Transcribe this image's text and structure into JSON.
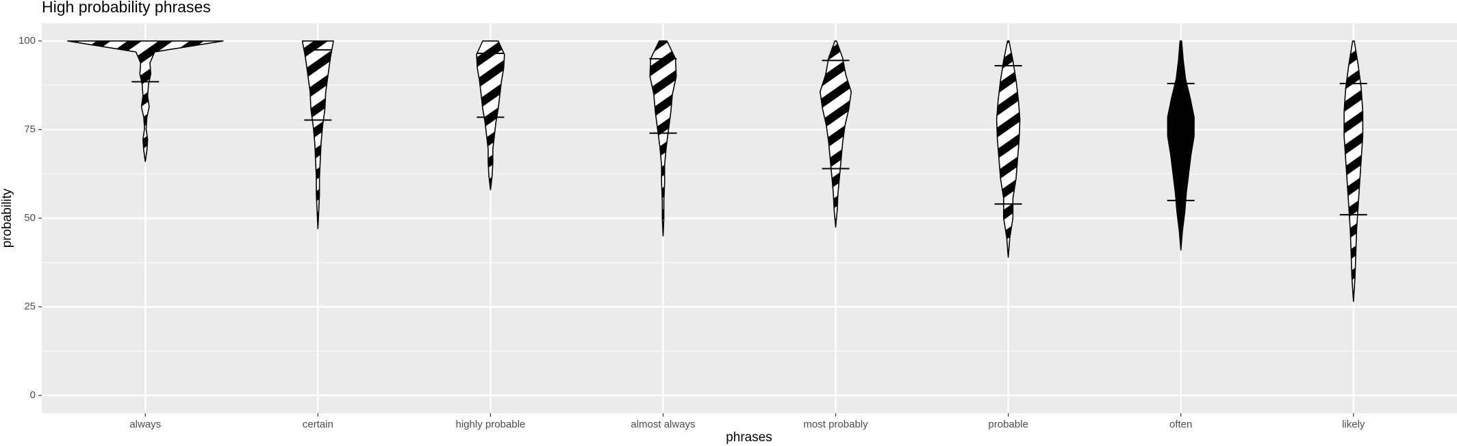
{
  "chart_data": {
    "type": "violin",
    "title": "High probability phrases",
    "xlabel": "phrases",
    "ylabel": "probability",
    "categories": [
      "always",
      "certain",
      "highly probable",
      "almost always",
      "most probably",
      "probable",
      "often",
      "likely"
    ],
    "ylim": [
      -5,
      105
    ],
    "yticks": [
      0,
      25,
      50,
      75,
      100
    ],
    "grid": true,
    "line_color": "#000000",
    "violins": [
      {
        "min": 66,
        "max": 100,
        "quantiles": [
          88.5
        ],
        "fill": "stripes",
        "widths": [
          0,
          0.02,
          0.03,
          0.01,
          0.02,
          0.05,
          0.03,
          0.04,
          0.07,
          0.06,
          0.12,
          1.0
        ]
      },
      {
        "min": 47,
        "max": 100,
        "quantiles": [
          77.7,
          97.5
        ],
        "fill": "stripes",
        "widths": [
          0,
          0.01,
          0.02,
          0.02,
          0.03,
          0.04,
          0.06,
          0.09,
          0.1,
          0.13,
          0.16,
          0.2
        ]
      },
      {
        "min": 58,
        "max": 100,
        "quantiles": [
          78.5,
          96.5
        ],
        "fill": "stripes",
        "widths": [
          0,
          0.02,
          0.03,
          0.03,
          0.05,
          0.07,
          0.1,
          0.12,
          0.14,
          0.17,
          0.18,
          0.1
        ]
      },
      {
        "min": 45,
        "max": 100,
        "quantiles": [
          74,
          95
        ],
        "fill": "stripes",
        "widths": [
          0,
          0.01,
          0.01,
          0.02,
          0.02,
          0.04,
          0.07,
          0.1,
          0.12,
          0.17,
          0.16,
          0.05
        ]
      },
      {
        "min": 47.5,
        "max": 100,
        "quantiles": [
          64,
          94.5
        ],
        "fill": "stripes",
        "widths": [
          0,
          0.02,
          0.03,
          0.05,
          0.07,
          0.09,
          0.12,
          0.17,
          0.2,
          0.13,
          0.09,
          0.01
        ]
      },
      {
        "min": 39,
        "max": 100,
        "quantiles": [
          54,
          93
        ],
        "fill": "stripes",
        "widths": [
          0,
          0.02,
          0.06,
          0.06,
          0.1,
          0.12,
          0.14,
          0.15,
          0.13,
          0.1,
          0.06,
          0.01
        ]
      },
      {
        "min": 41,
        "max": 100,
        "quantiles": [
          55,
          88
        ],
        "fill": "solid",
        "widths": [
          0,
          0.02,
          0.05,
          0.07,
          0.1,
          0.13,
          0.17,
          0.17,
          0.12,
          0.06,
          0.03,
          0.01
        ]
      },
      {
        "min": 26.5,
        "max": 100,
        "quantiles": [
          51,
          88
        ],
        "fill": "stripes",
        "widths": [
          0,
          0.02,
          0.03,
          0.04,
          0.06,
          0.08,
          0.1,
          0.12,
          0.12,
          0.1,
          0.06,
          0.01
        ]
      }
    ]
  }
}
